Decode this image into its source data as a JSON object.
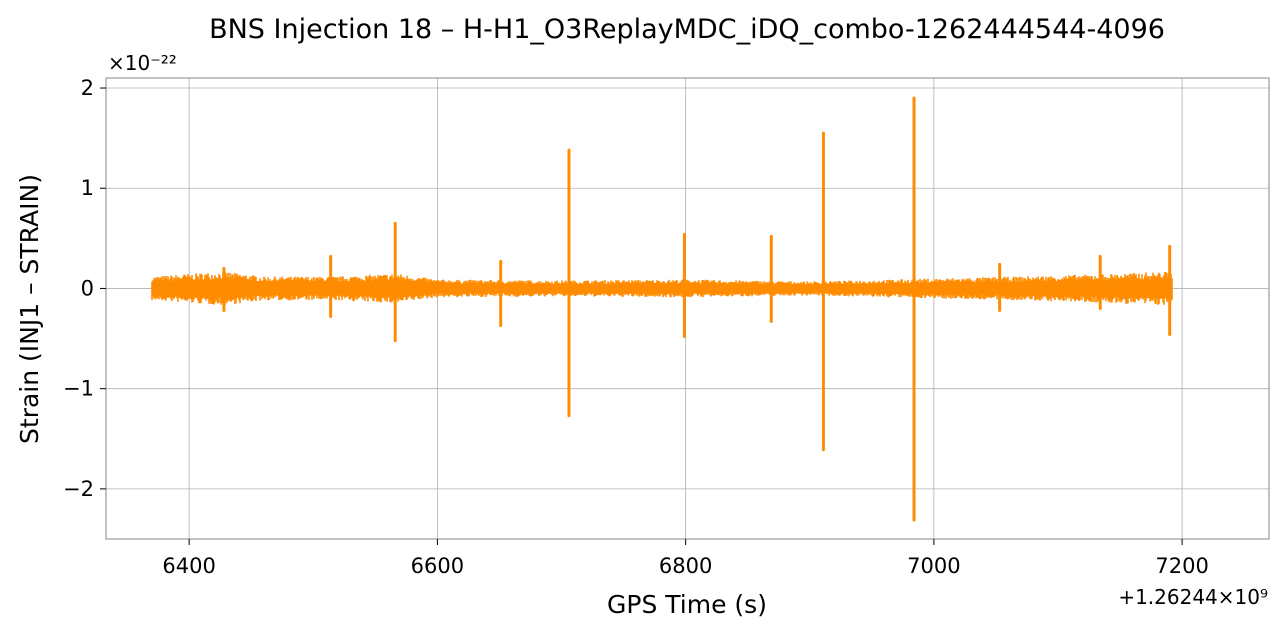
{
  "chart_data": {
    "type": "line",
    "title": "BNS Injection 18 – H-H1_O3ReplayMDC_iDQ_combo-1262444544-4096",
    "xlabel": "GPS Time (s)",
    "ylabel": "Strain (INJ1 – STRAIN)",
    "x_offset_label": "+1.26244×10⁹",
    "y_scale_label": "×10⁻²²",
    "xlim": [
      6333,
      7270
    ],
    "ylim": [
      -2.5,
      2.1
    ],
    "x_ticks": [
      6400,
      6600,
      6800,
      7000,
      7200
    ],
    "x_tick_labels": [
      "6400",
      "6600",
      "6800",
      "7000",
      "7200"
    ],
    "y_ticks": [
      -2,
      -1,
      0,
      1,
      2
    ],
    "y_tick_labels": [
      "−2",
      "−1",
      "0",
      "1",
      "2"
    ],
    "grid": true,
    "color": "#ff8c00",
    "series": [
      {
        "x_range": [
          6370,
          7192
        ],
        "noise_envelope": [
          {
            "x": 6370,
            "amp": 0.12
          },
          {
            "x": 6428,
            "amp": 0.17
          },
          {
            "x": 6460,
            "amp": 0.12
          },
          {
            "x": 6520,
            "amp": 0.12
          },
          {
            "x": 6567,
            "amp": 0.15
          },
          {
            "x": 6600,
            "amp": 0.09
          },
          {
            "x": 6700,
            "amp": 0.08
          },
          {
            "x": 6800,
            "amp": 0.09
          },
          {
            "x": 6900,
            "amp": 0.07
          },
          {
            "x": 7000,
            "amp": 0.1
          },
          {
            "x": 7100,
            "amp": 0.13
          },
          {
            "x": 7192,
            "amp": 0.17
          }
        ],
        "spikes": [
          {
            "x": 6428,
            "max": 0.2,
            "min": -0.22
          },
          {
            "x": 6514,
            "max": 0.32,
            "min": -0.28
          },
          {
            "x": 6566,
            "max": 0.65,
            "min": -0.52
          },
          {
            "x": 6651,
            "max": 0.27,
            "min": -0.37
          },
          {
            "x": 6706,
            "max": 1.38,
            "min": -1.27
          },
          {
            "x": 6799,
            "max": 0.54,
            "min": -0.48
          },
          {
            "x": 6869,
            "max": 0.52,
            "min": -0.33
          },
          {
            "x": 6911,
            "max": 1.55,
            "min": -1.61
          },
          {
            "x": 6984,
            "max": 1.9,
            "min": -2.31
          },
          {
            "x": 7053,
            "max": 0.24,
            "min": -0.22
          },
          {
            "x": 7134,
            "max": 0.32,
            "min": -0.2
          },
          {
            "x": 7190,
            "max": 0.42,
            "min": -0.46
          }
        ]
      }
    ]
  }
}
